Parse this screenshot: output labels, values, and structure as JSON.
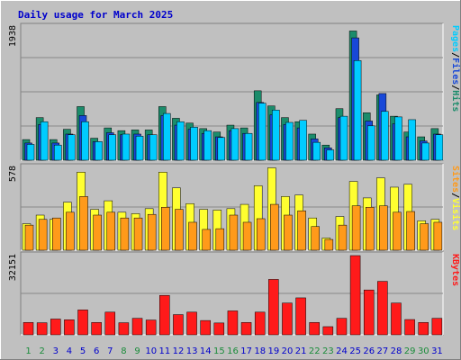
{
  "chart_data": {
    "type": "bar",
    "title": "Daily usage for March 2025",
    "categories": [
      "1",
      "2",
      "3",
      "4",
      "5",
      "6",
      "7",
      "8",
      "9",
      "10",
      "11",
      "12",
      "13",
      "14",
      "15",
      "16",
      "17",
      "18",
      "19",
      "20",
      "21",
      "22",
      "23",
      "24",
      "25",
      "26",
      "27",
      "28",
      "29",
      "30",
      "31"
    ],
    "weekend_days": [
      "1",
      "2",
      "8",
      "9",
      "15",
      "16",
      "22",
      "23",
      "29",
      "30"
    ],
    "panels": [
      {
        "ymax_label": "1938",
        "ymax": 1938,
        "series": [
          {
            "name": "Hits",
            "color": "#1b8c6b",
            "values": [
              300,
              620,
              300,
              450,
              780,
              320,
              470,
              430,
              440,
              440,
              780,
              610,
              540,
              460,
              410,
              510,
              470,
              1010,
              790,
              620,
              560,
              380,
              220,
              750,
              1880,
              690,
              950,
              640,
              410,
              340,
              460
            ]
          },
          {
            "name": "Files",
            "color": "#1848d8",
            "values": [
              250,
              520,
              250,
              380,
              650,
              270,
              400,
              370,
              380,
              370,
              650,
              510,
              450,
              390,
              340,
              430,
              390,
              840,
              660,
              520,
              470,
              310,
              180,
              620,
              1780,
              570,
              970,
              530,
              340,
              280,
              380
            ]
          },
          {
            "name": "Pages",
            "color": "#00ccff",
            "values": [
              230,
              560,
              220,
              370,
              560,
              270,
              370,
              380,
              350,
              370,
              680,
              560,
              480,
              430,
              330,
              460,
              390,
              830,
              730,
              550,
              580,
              260,
              150,
              640,
              1450,
              500,
              710,
              630,
              590,
              250,
              370
            ]
          }
        ],
        "legend_colors": [
          "#00ccff",
          "#1848d8",
          "#1b8c6b"
        ]
      },
      {
        "ymax_label": "578",
        "ymax": 578,
        "series": [
          {
            "name": "Visits",
            "color": "#ffff30",
            "values": [
              185,
              245,
              215,
              335,
              545,
              285,
              345,
              265,
              255,
              290,
              545,
              435,
              325,
              285,
              280,
              290,
              320,
              450,
              575,
              375,
              385,
              225,
              85,
              235,
              480,
              365,
              505,
              440,
              460,
              205,
              215
            ]
          },
          {
            "name": "Sites",
            "color": "#ff9a1a",
            "values": [
              175,
              215,
              225,
              265,
              375,
              245,
              265,
              225,
              225,
              250,
              300,
              285,
              195,
              145,
              150,
              245,
              195,
              220,
              320,
              245,
              275,
              165,
              75,
              175,
              310,
              300,
              310,
              265,
              270,
              185,
              195
            ]
          }
        ],
        "legend_colors": [
          "#ff9a1a",
          "#ffff30"
        ]
      },
      {
        "ymax_label": "32151",
        "ymax": 32151,
        "series": [
          {
            "name": "KBytes",
            "color": "#ff1a1a",
            "values": [
              5000,
              4900,
              6400,
              6100,
              10100,
              5000,
              9200,
              4900,
              6700,
              6000,
              16000,
              8200,
              9200,
              5800,
              4800,
              9700,
              5000,
              9200,
              22500,
              12900,
              15000,
              5000,
              3300,
              6700,
              32151,
              18200,
              21700,
              12900,
              6200,
              5000,
              6700
            ]
          }
        ],
        "legend_colors": [
          "#ff1a1a"
        ]
      }
    ],
    "side_labels": [
      {
        "parts": [
          {
            "text": "Pages",
            "color": "#00ccff"
          },
          {
            "text": "/",
            "color": "#000000"
          },
          {
            "text": "Files",
            "color": "#1848d8"
          },
          {
            "text": "/",
            "color": "#000000"
          },
          {
            "text": "Hits",
            "color": "#1b8c6b"
          }
        ]
      },
      {
        "parts": [
          {
            "text": "Sites",
            "color": "#ff9a1a"
          },
          {
            "text": "/",
            "color": "#000000"
          },
          {
            "text": "Visits",
            "color": "#ffff30"
          }
        ]
      },
      {
        "parts": [
          {
            "text": "KBytes",
            "color": "#ff1a1a"
          }
        ]
      }
    ],
    "colors": {
      "background": "#c0c0c0",
      "weekday_label": "#0000cc",
      "weekend_label": "#1b8c3b",
      "grid": "#888888"
    }
  }
}
